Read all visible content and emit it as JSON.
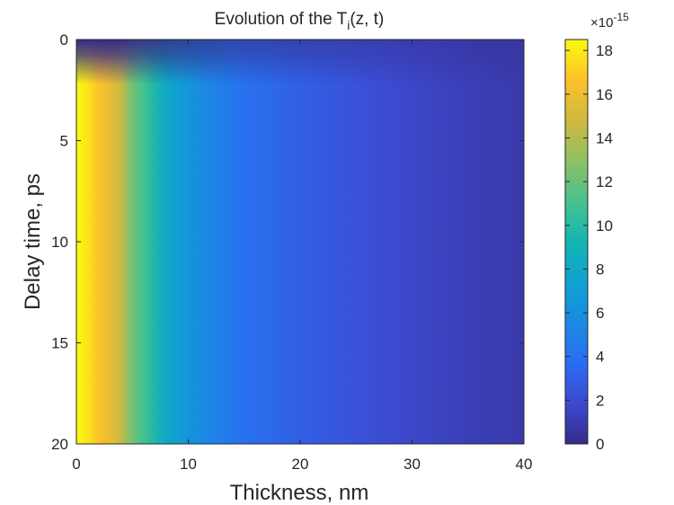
{
  "chart_data": {
    "type": "heatmap",
    "title_prefix": "Evolution of the T",
    "title_subscript": "i",
    "title_suffix": "(z, t)",
    "xlabel": "Thickness, nm",
    "ylabel": "Delay time, ps",
    "xlim": [
      0,
      40
    ],
    "ylim": [
      0,
      20
    ],
    "y_direction": "reversed",
    "x_ticks": [
      "0",
      "10",
      "20",
      "30",
      "40"
    ],
    "y_ticks": [
      "0",
      "5",
      "10",
      "15",
      "20"
    ],
    "colorbar": {
      "range": [
        0,
        18.5
      ],
      "ticks": [
        "0",
        "2",
        "4",
        "6",
        "8",
        "10",
        "12",
        "14",
        "16",
        "18"
      ],
      "exponent_label": "×10",
      "exponent_value": "-15",
      "colormap": "parula"
    },
    "profile_at_late_time": {
      "thickness_nm": [
        0,
        1,
        2,
        3,
        4,
        5,
        6,
        7,
        8,
        10,
        12,
        15,
        20,
        25,
        30,
        35,
        40
      ],
      "value_e15": [
        18.5,
        17.8,
        16.6,
        15.8,
        14.5,
        12.2,
        11.0,
        9.6,
        8.0,
        6.4,
        5.2,
        4.0,
        3.0,
        2.3,
        1.7,
        1.2,
        0.9
      ]
    },
    "rise_time_ps": 0.4
  }
}
